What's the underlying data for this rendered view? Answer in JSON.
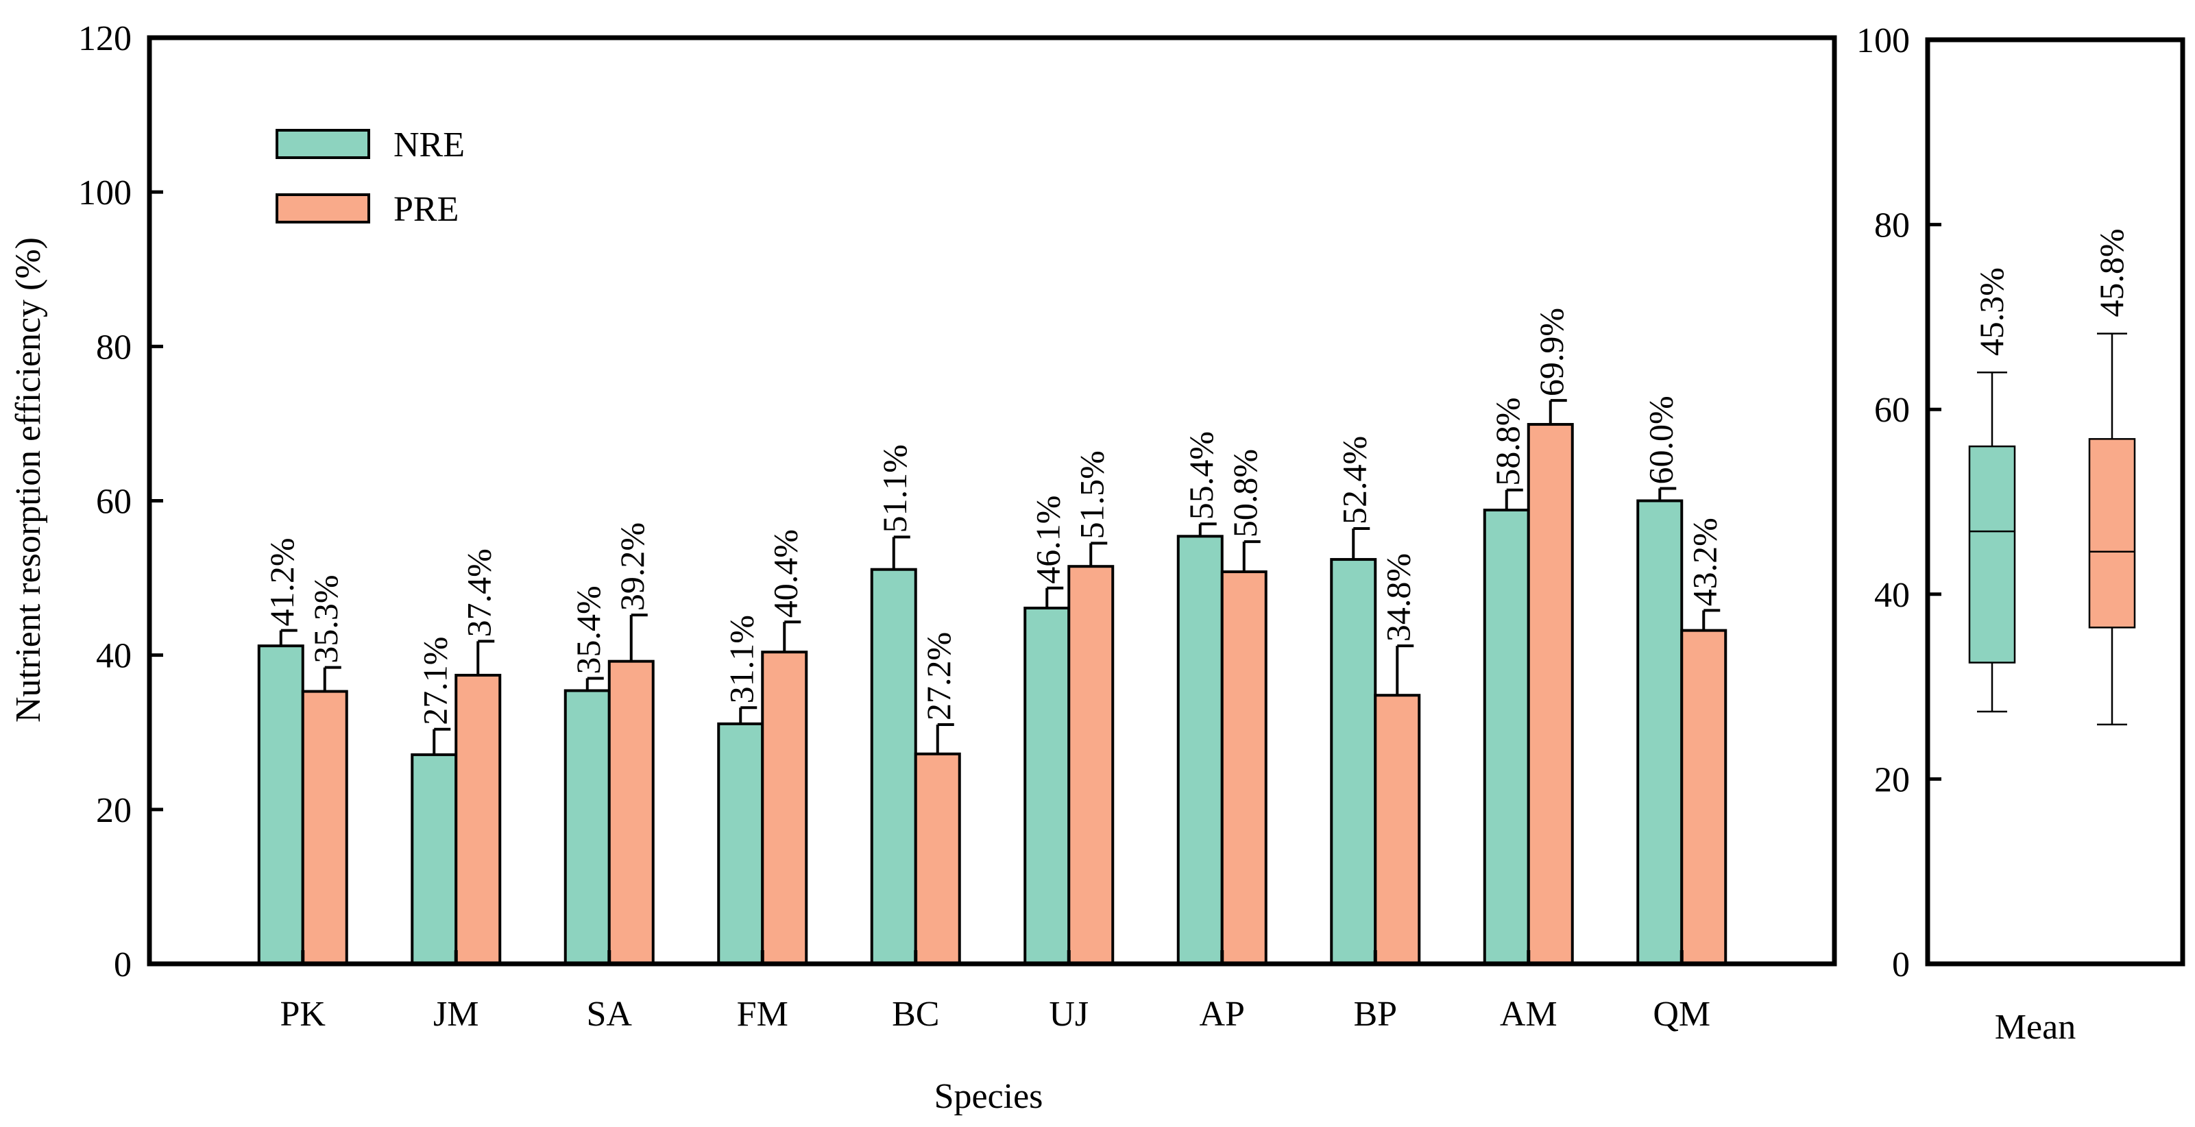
{
  "chart_data": [
    {
      "type": "bar",
      "title": "",
      "xlabel": "Species",
      "ylabel": "Nutrient resorption efficiency (%)",
      "ylim": [
        0,
        120
      ],
      "yticks": [
        "0",
        "20",
        "40",
        "60",
        "80",
        "100",
        "120"
      ],
      "categories": [
        "PK",
        "JM",
        "SA",
        "FM",
        "BC",
        "UJ",
        "AP",
        "BP",
        "AM",
        "QM"
      ],
      "series": [
        {
          "name": "NRE",
          "color": "#8dd3bf",
          "values": [
            41.2,
            27.1,
            35.4,
            31.1,
            51.1,
            46.1,
            55.4,
            52.4,
            58.8,
            60.0
          ],
          "errors": [
            2.0,
            3.3,
            1.6,
            2.1,
            4.2,
            2.6,
            1.6,
            4.0,
            2.6,
            1.6
          ],
          "labels": [
            "41.2%",
            "27.1%",
            "35.4%",
            "31.1%",
            "51.1%",
            "46.1%",
            "55.4%",
            "52.4%",
            "58.8%",
            "60.0%"
          ]
        },
        {
          "name": "PRE",
          "color": "#f9aa8a",
          "values": [
            35.3,
            37.4,
            39.2,
            40.4,
            27.2,
            51.5,
            50.8,
            34.8,
            69.9,
            43.2
          ],
          "errors": [
            3.1,
            4.4,
            6.0,
            3.9,
            3.8,
            3.0,
            3.9,
            6.4,
            3.1,
            2.6
          ],
          "labels": [
            "35.3%",
            "37.4%",
            "39.2%",
            "40.4%",
            "27.2%",
            "51.5%",
            "50.8%",
            "34.8%",
            "69.9%",
            "43.2%"
          ]
        }
      ],
      "legend": {
        "position": "top-left",
        "entries": [
          "NRE",
          "PRE"
        ]
      },
      "grid": false
    },
    {
      "type": "box",
      "title": "",
      "xlabel": "Mean",
      "ylim": [
        0,
        100
      ],
      "yticks": [
        "0",
        "20",
        "40",
        "60",
        "80",
        "100"
      ],
      "boxes": [
        {
          "name": "NRE",
          "color": "#8dd3bf",
          "whisker_low": 27.3,
          "q1": 32.6,
          "median": 46.8,
          "q3": 56.0,
          "whisker_high": 64.0,
          "mean_label": "45.3%"
        },
        {
          "name": "PRE",
          "color": "#f9aa8a",
          "whisker_low": 25.9,
          "q1": 36.4,
          "median": 44.6,
          "q3": 56.8,
          "whisker_high": 68.2,
          "mean_label": "45.8%"
        }
      ]
    }
  ]
}
